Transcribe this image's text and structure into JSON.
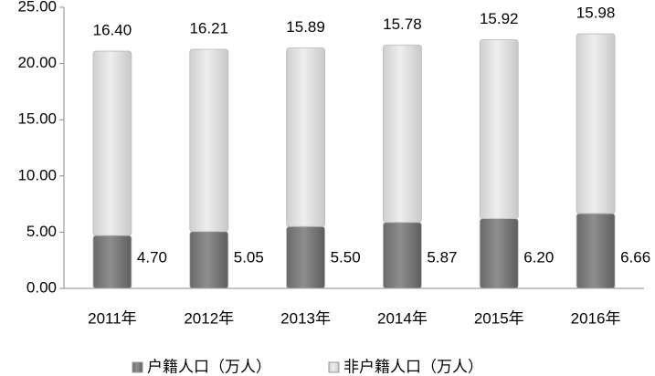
{
  "chart_data": {
    "type": "stacked-bar",
    "categories": [
      "2011年",
      "2012年",
      "2013年",
      "2014年",
      "2015年",
      "2016年"
    ],
    "series": [
      {
        "name": "户籍人口（万人）",
        "color": "#808080",
        "values": [
          4.7,
          5.05,
          5.5,
          5.87,
          6.2,
          6.66
        ],
        "value_labels": [
          "4.70",
          "5.05",
          "5.50",
          "5.87",
          "6.20",
          "6.66"
        ]
      },
      {
        "name": "非户籍人口（万人）",
        "color": "#dcdcdc",
        "values": [
          16.4,
          16.21,
          15.89,
          15.78,
          15.92,
          15.98
        ],
        "value_labels": [
          "16.40",
          "16.21",
          "15.89",
          "15.78",
          "15.92",
          "15.98"
        ]
      }
    ],
    "ylim": [
      0,
      25
    ],
    "yticks": [
      {
        "value": 0,
        "label": "0.00"
      },
      {
        "value": 5,
        "label": "5.00"
      },
      {
        "value": 10,
        "label": "10.00"
      },
      {
        "value": 15,
        "label": "15.00"
      },
      {
        "value": 20,
        "label": "20.00"
      },
      {
        "value": 25,
        "label": "25.00"
      }
    ],
    "legend": "bottom"
  }
}
